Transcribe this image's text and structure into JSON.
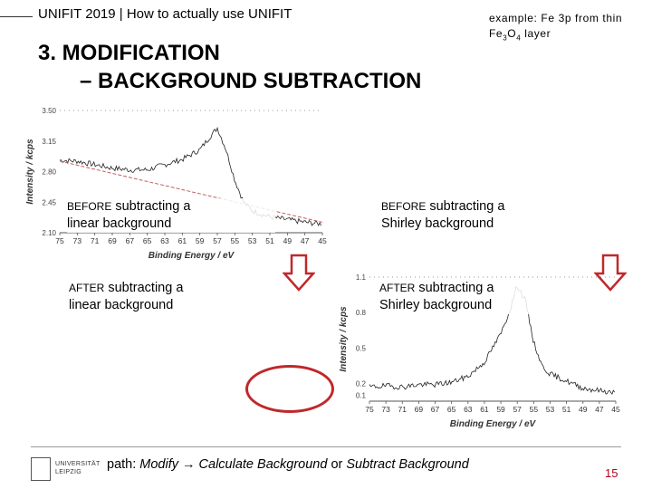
{
  "header": {
    "title_bold": "UNIFIT 2019",
    "separator": " | ",
    "title_rest": "How to actually use UNIFIT"
  },
  "example_note": {
    "line1": "example: Fe 3p from thin",
    "line2_prefix": "Fe",
    "sub1": "3",
    "mid": "O",
    "sub2": "4",
    "line2_suffix": " layer"
  },
  "title": {
    "line1": "3. MODIFICATION",
    "line2": "– BACKGROUND SUBTRACTION"
  },
  "captions": {
    "before_linear": {
      "prefix": "BEFORE",
      "rest": " subtracting a",
      "line2": "linear background"
    },
    "before_shirley": {
      "prefix": "BEFORE",
      "rest": " subtracting a",
      "line2": "Shirley background"
    },
    "after_linear": {
      "prefix": "AFTER",
      "rest": " subtracting a",
      "line2": "linear background"
    },
    "after_shirley": {
      "prefix": "AFTER",
      "rest": " subtracting a",
      "line2": "Shirley background"
    }
  },
  "chart_data": [
    {
      "type": "line",
      "title": "",
      "xlabel": "Binding Energy / eV",
      "ylabel": "Intensity / kcps",
      "x_ticks": [
        "75",
        "73",
        "71",
        "69",
        "67",
        "65",
        "63",
        "61",
        "59",
        "57",
        "55",
        "53",
        "51",
        "49",
        "47",
        "45"
      ],
      "y_ticks": [
        "3.50",
        "3.15",
        "2.80",
        "2.45",
        "2.10"
      ],
      "xlim": [
        75,
        45
      ],
      "ylim": [
        2.1,
        3.5
      ],
      "series": [
        {
          "name": "spectrum",
          "x": [
            75,
            73,
            71,
            69,
            67,
            65,
            63,
            61,
            59,
            58,
            57,
            56,
            55,
            54,
            53,
            51,
            49,
            47,
            45
          ],
          "values": [
            2.93,
            2.92,
            2.88,
            2.84,
            2.82,
            2.82,
            2.88,
            2.94,
            3.05,
            3.18,
            3.3,
            3.05,
            2.7,
            2.45,
            2.35,
            2.28,
            2.25,
            2.22,
            2.2
          ]
        },
        {
          "name": "linear background",
          "x": [
            75,
            45
          ],
          "values": [
            2.92,
            2.22
          ]
        }
      ]
    },
    {
      "type": "line",
      "title": "",
      "xlabel": "Binding Energy / eV",
      "ylabel": "Intensity / kcps",
      "x_ticks": [
        "75",
        "73",
        "71",
        "69",
        "67",
        "65",
        "63",
        "61",
        "59",
        "57",
        "55",
        "53",
        "51",
        "49",
        "47",
        "45"
      ],
      "y_ticks": [
        "1.1",
        "0.8",
        "0.5",
        "0.2",
        "0.1"
      ],
      "xlim": [
        75,
        45
      ],
      "ylim": [
        0.05,
        1.1
      ],
      "series": [
        {
          "name": "spectrum after subtraction",
          "x": [
            75,
            73,
            71,
            69,
            67,
            65,
            63,
            61,
            60,
            59,
            58,
            57,
            56,
            55,
            54,
            53,
            52,
            51,
            49,
            47,
            45
          ],
          "values": [
            0.17,
            0.18,
            0.17,
            0.19,
            0.19,
            0.21,
            0.26,
            0.38,
            0.5,
            0.62,
            0.8,
            1.03,
            0.9,
            0.55,
            0.35,
            0.28,
            0.25,
            0.22,
            0.16,
            0.14,
            0.12
          ]
        }
      ]
    }
  ],
  "footer": {
    "path_prefix": "path: ",
    "path_italic1": "Modify → Calculate Background",
    "path_mid": " or ",
    "path_italic2": "Subtract Background",
    "page_number": "15",
    "logo_line1": "UNIVERSITÄT",
    "logo_line2": "LEIPZIG"
  },
  "colors": {
    "accent_red": "#c0282a",
    "bg_line": "#c06060"
  }
}
